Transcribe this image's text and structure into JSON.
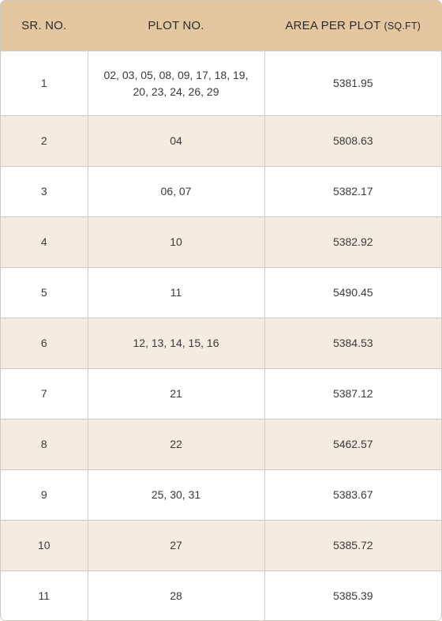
{
  "table": {
    "headers": {
      "sr_no": "SR. NO.",
      "plot_no": "PLOT NO.",
      "area": "AREA PER PLOT",
      "area_unit": "(SQ.FT)"
    },
    "rows": [
      {
        "sr": "1",
        "plots": "02, 03, 05, 08, 09, 17, 18, 19, 20, 23, 24, 26, 29",
        "area": "5381.95"
      },
      {
        "sr": "2",
        "plots": "04",
        "area": "5808.63"
      },
      {
        "sr": "3",
        "plots": "06, 07",
        "area": "5382.17"
      },
      {
        "sr": "4",
        "plots": "10",
        "area": "5382.92"
      },
      {
        "sr": "5",
        "plots": "11",
        "area": "5490.45"
      },
      {
        "sr": "6",
        "plots": "12, 13, 14, 15, 16",
        "area": "5384.53"
      },
      {
        "sr": "7",
        "plots": "21",
        "area": "5387.12"
      },
      {
        "sr": "8",
        "plots": "22",
        "area": "5462.57"
      },
      {
        "sr": "9",
        "plots": "25, 30, 31",
        "area": "5383.67"
      },
      {
        "sr": "10",
        "plots": "27",
        "area": "5385.72"
      },
      {
        "sr": "11",
        "plots": "28",
        "area": "5385.39"
      }
    ]
  },
  "colors": {
    "header_bg": "#e4c7a1",
    "alt_row_bg": "#f4ece1",
    "row_bg": "#ffffff",
    "border": "#d2ccc4"
  }
}
